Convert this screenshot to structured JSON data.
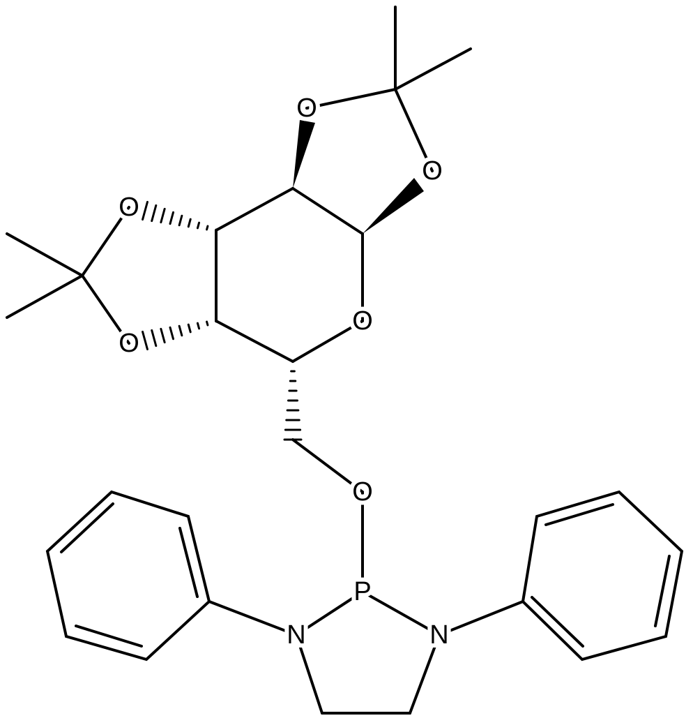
{
  "atoms": [
    "O",
    "O",
    "O",
    "O",
    "O",
    "O",
    "P",
    "N",
    "N"
  ]
}
